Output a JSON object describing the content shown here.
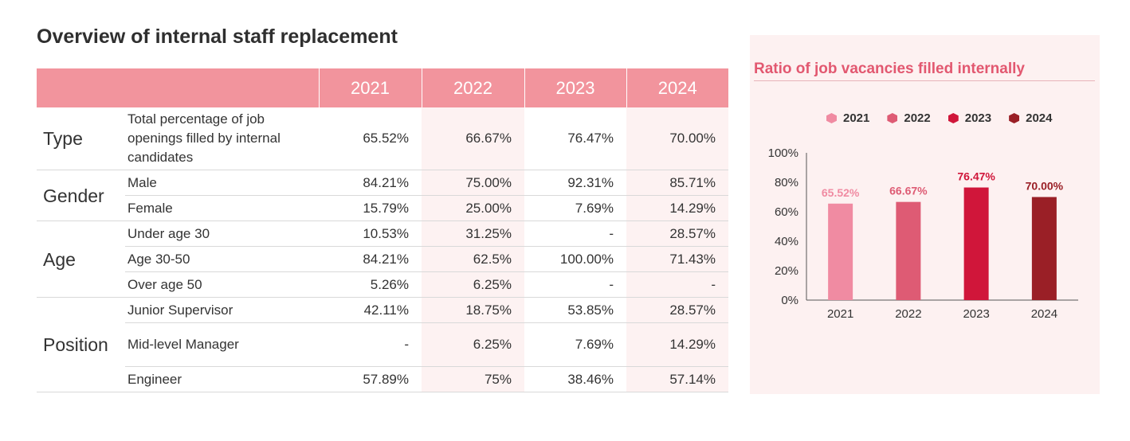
{
  "title": "Overview of internal staff replacement",
  "table": {
    "years": [
      "2021",
      "2022",
      "2023",
      "2024"
    ],
    "groups": [
      {
        "category": "Type",
        "rows": [
          {
            "label": "Total percentage of job openings filled by internal candidates",
            "values": [
              "65.52%",
              "66.67%",
              "76.47%",
              "70.00%"
            ]
          }
        ]
      },
      {
        "category": "Gender",
        "rows": [
          {
            "label": "Male",
            "values": [
              "84.21%",
              "75.00%",
              "92.31%",
              "85.71%"
            ]
          },
          {
            "label": "Female",
            "values": [
              "15.79%",
              "25.00%",
              "7.69%",
              "14.29%"
            ]
          }
        ]
      },
      {
        "category": "Age",
        "rows": [
          {
            "label": "Under age 30",
            "values": [
              "10.53%",
              "31.25%",
              "-",
              "28.57%"
            ]
          },
          {
            "label": "Age 30-50",
            "values": [
              "84.21%",
              "62.5%",
              "100.00%",
              "71.43%"
            ]
          },
          {
            "label": "Over age 50",
            "values": [
              "5.26%",
              "6.25%",
              "-",
              "-"
            ]
          }
        ]
      },
      {
        "category": "Position",
        "rows": [
          {
            "label": "Junior Supervisor",
            "values": [
              "42.11%",
              "18.75%",
              "53.85%",
              "28.57%"
            ]
          },
          {
            "label": "Mid-level Manager",
            "values": [
              "-",
              "6.25%",
              "7.69%",
              "14.29%"
            ]
          },
          {
            "label": "Engineer",
            "values": [
              "57.89%",
              "75%",
              "38.46%",
              "57.14%"
            ]
          }
        ]
      }
    ]
  },
  "chart_data": {
    "type": "bar",
    "title": "Ratio of job vacancies filled internally",
    "categories": [
      "2021",
      "2022",
      "2023",
      "2024"
    ],
    "values": [
      65.52,
      66.67,
      76.47,
      70.0
    ],
    "data_labels": [
      "65.52%",
      "66.67%",
      "76.47%",
      "70.00%"
    ],
    "colors": [
      "#f08ba2",
      "#de5b74",
      "#d0163a",
      "#9a1f26"
    ],
    "legend": [
      "2021",
      "2022",
      "2023",
      "2024"
    ],
    "legend_position": "top",
    "ylim": [
      0,
      100
    ],
    "yticks": [
      "0%",
      "20%",
      "40%",
      "60%",
      "80%",
      "100%"
    ],
    "ytick_values": [
      0,
      20,
      40,
      60,
      80,
      100
    ],
    "grid": false
  }
}
